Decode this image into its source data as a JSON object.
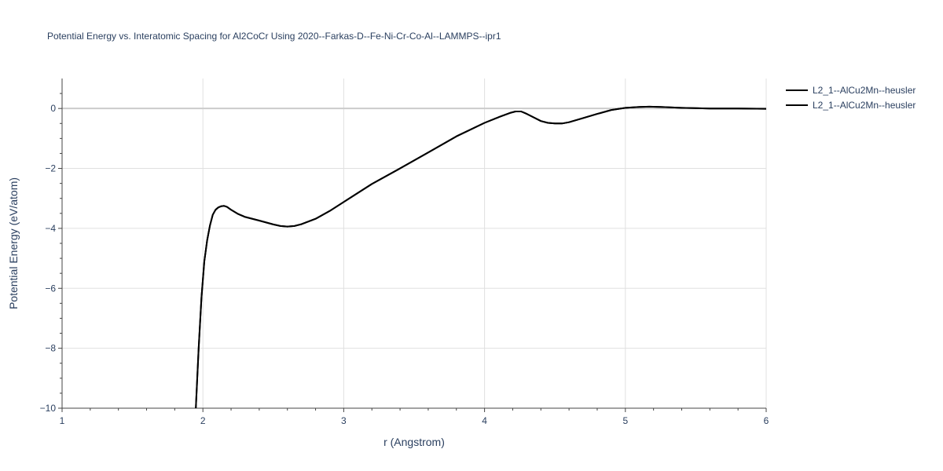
{
  "chart_data": {
    "type": "line",
    "title": "Potential Energy vs. Interatomic Spacing for Al2CoCr Using 2020--Farkas-D--Fe-Ni-Cr-Co-Al--LAMMPS--ipr1",
    "xlabel": "r (Angstrom)",
    "ylabel": "Potential Energy (eV/atom)",
    "xlim": [
      1,
      6
    ],
    "ylim": [
      -10,
      1
    ],
    "xticks": [
      1,
      2,
      3,
      4,
      5,
      6
    ],
    "yticks": [
      0,
      -2,
      -4,
      -6,
      -8,
      -10
    ],
    "grid": true,
    "legend_position": "top-right",
    "series": [
      {
        "name": "L2_1--AlCu2Mn--heusler",
        "color": "#000000",
        "x": [
          1.95,
          1.97,
          1.99,
          2.01,
          2.03,
          2.05,
          2.07,
          2.09,
          2.11,
          2.13,
          2.15,
          2.17,
          2.2,
          2.25,
          2.3,
          2.4,
          2.5,
          2.55,
          2.6,
          2.65,
          2.7,
          2.8,
          2.9,
          3.0,
          3.2,
          3.4,
          3.6,
          3.8,
          4.0,
          4.1,
          4.18,
          4.22,
          4.26,
          4.3,
          4.35,
          4.4,
          4.45,
          4.5,
          4.55,
          4.6,
          4.7,
          4.8,
          4.9,
          5.0,
          5.1,
          5.17,
          5.25,
          5.4,
          5.6,
          5.8,
          6.0
        ],
        "values": [
          -10.0,
          -8.0,
          -6.3,
          -5.1,
          -4.4,
          -3.9,
          -3.55,
          -3.38,
          -3.3,
          -3.26,
          -3.25,
          -3.28,
          -3.38,
          -3.52,
          -3.62,
          -3.74,
          -3.87,
          -3.92,
          -3.94,
          -3.92,
          -3.86,
          -3.68,
          -3.42,
          -3.12,
          -2.52,
          -2.0,
          -1.47,
          -0.93,
          -0.48,
          -0.29,
          -0.15,
          -0.1,
          -0.1,
          -0.18,
          -0.3,
          -0.42,
          -0.48,
          -0.5,
          -0.5,
          -0.46,
          -0.32,
          -0.18,
          -0.05,
          0.02,
          0.05,
          0.06,
          0.05,
          0.02,
          0.0,
          0.0,
          -0.01
        ]
      },
      {
        "name": "L2_1--AlCu2Mn--heusler",
        "color": "#000000",
        "x": [
          1.95,
          1.97,
          1.99,
          2.01,
          2.03,
          2.05,
          2.07,
          2.09,
          2.11,
          2.13,
          2.15,
          2.17,
          2.2,
          2.25,
          2.3,
          2.4,
          2.5,
          2.55,
          2.6,
          2.65,
          2.7,
          2.8,
          2.9,
          3.0,
          3.2,
          3.4,
          3.6,
          3.8,
          4.0,
          4.1,
          4.18,
          4.22,
          4.26,
          4.3,
          4.35,
          4.4,
          4.45,
          4.5,
          4.55,
          4.6,
          4.7,
          4.8,
          4.9,
          5.0,
          5.1,
          5.17,
          5.25,
          5.4,
          5.6,
          5.8,
          6.0
        ],
        "values": [
          -10.0,
          -8.0,
          -6.3,
          -5.1,
          -4.4,
          -3.9,
          -3.55,
          -3.38,
          -3.3,
          -3.26,
          -3.25,
          -3.28,
          -3.38,
          -3.52,
          -3.62,
          -3.74,
          -3.87,
          -3.92,
          -3.94,
          -3.92,
          -3.86,
          -3.68,
          -3.42,
          -3.12,
          -2.52,
          -2.0,
          -1.47,
          -0.93,
          -0.48,
          -0.29,
          -0.15,
          -0.1,
          -0.1,
          -0.18,
          -0.3,
          -0.42,
          -0.48,
          -0.5,
          -0.5,
          -0.46,
          -0.32,
          -0.18,
          -0.05,
          0.02,
          0.05,
          0.06,
          0.05,
          0.02,
          0.0,
          0.0,
          -0.01
        ]
      }
    ]
  }
}
